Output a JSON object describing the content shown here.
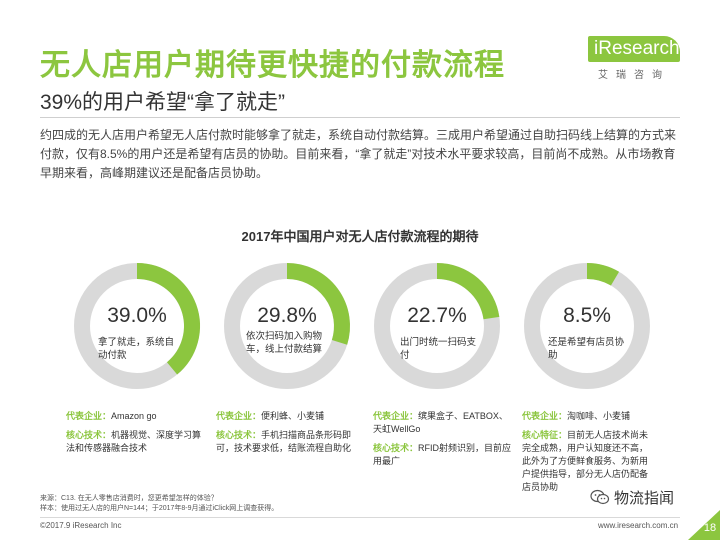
{
  "header": {
    "title": "无人店用户期待更快捷的付款流程",
    "subtitle": "39%的用户希望“拿了就走”",
    "intro": "约四成的无人店用户希望无人店付款时能够拿了就走，系统自动付款结算。三成用户希望通过自助扫码线上结算的方式来付款，仅有8.5%的用户还是希望有店员的协助。目前来看，“拿了就走”对技术水平要求较高，目前尚不成熟。从市场教育早期来看，高峰期建议还是配备店员协助。"
  },
  "logo": {
    "text": "iResearch",
    "sub": "艾瑞咨询"
  },
  "colors": {
    "accent": "#8cc63f",
    "ring_bg": "#d9d9d9"
  },
  "chart_data": {
    "type": "pie",
    "title": "2017年中国用户对无人店付款流程的期待",
    "unit": "%",
    "items": [
      {
        "value": 39.0,
        "label": "39.0%",
        "desc": "拿了就走，系统自动付款",
        "rep_label": "代表企业：",
        "rep": "Amazon go",
        "tech_label": "核心技术：",
        "tech": "机器视觉、深度学习算法和传感器融合技术"
      },
      {
        "value": 29.8,
        "label": "29.8%",
        "desc": "依次扫码加入购物车，线上付款结算",
        "rep_label": "代表企业：",
        "rep": "便利蜂、小麦铺",
        "tech_label": "核心技术：",
        "tech": "手机扫描商品条形码即可，技术要求低，结账流程自助化"
      },
      {
        "value": 22.7,
        "label": "22.7%",
        "desc": "出门时统一扫码支付",
        "rep_label": "代表企业：",
        "rep": "缤果盒子、EATBOX、天虹WellGo",
        "tech_label": "核心技术：",
        "tech": "RFID射频识别，目前应用最广"
      },
      {
        "value": 8.5,
        "label": "8.5%",
        "desc": "还是希望有店员协助",
        "rep_label": "代表企业：",
        "rep": "淘咖啡、小麦铺",
        "feat_label": "核心特征：",
        "feat": "目前无人店技术尚未完全成熟，用户认知度还不高，此外为了方便鲜食服务、为新用户提供指导，部分无人店仍配备店员协助"
      }
    ]
  },
  "footer": {
    "source": "来源：C13. 在无人零售店消费时，您更希望怎样的体验？",
    "sample": "样本：使用过无人店的用户N=144；于2017年8-9月通过iClick网上调查获得。",
    "copyright": "©2017.9 iResearch Inc",
    "website": "www.iresearch.com.cn",
    "wechat": "物流指闻",
    "page": "18"
  }
}
